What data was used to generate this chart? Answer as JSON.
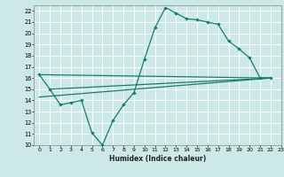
{
  "title": "",
  "xlabel": "Humidex (Indice chaleur)",
  "bg_color": "#cce9e8",
  "grid_color": "#ffffff",
  "line_color": "#1a7a6e",
  "xmin": -0.5,
  "xmax": 23,
  "ymin": 10,
  "ymax": 22.5,
  "yticks": [
    10,
    11,
    12,
    13,
    14,
    15,
    16,
    17,
    18,
    19,
    20,
    21,
    22
  ],
  "xticks": [
    0,
    1,
    2,
    3,
    4,
    5,
    6,
    7,
    8,
    9,
    10,
    11,
    12,
    13,
    14,
    15,
    16,
    17,
    18,
    19,
    20,
    21,
    22,
    23
  ],
  "line1_x": [
    0,
    1,
    2,
    3,
    4,
    5,
    6,
    7,
    8,
    9,
    10,
    11,
    12,
    13,
    14,
    15,
    16,
    17,
    18,
    19,
    20,
    21,
    22
  ],
  "line1_y": [
    16.3,
    15.0,
    13.6,
    13.8,
    14.0,
    11.1,
    10.0,
    12.2,
    13.6,
    14.7,
    17.7,
    20.5,
    22.3,
    21.8,
    21.3,
    21.2,
    21.0,
    20.8,
    19.3,
    18.6,
    17.8,
    16.0,
    16.0
  ],
  "line2_x": [
    0,
    22
  ],
  "line2_y": [
    16.3,
    16.0
  ],
  "line3_x": [
    1,
    22
  ],
  "line3_y": [
    15.0,
    16.0
  ],
  "line4_x": [
    0,
    22
  ],
  "line4_y": [
    14.3,
    16.0
  ]
}
